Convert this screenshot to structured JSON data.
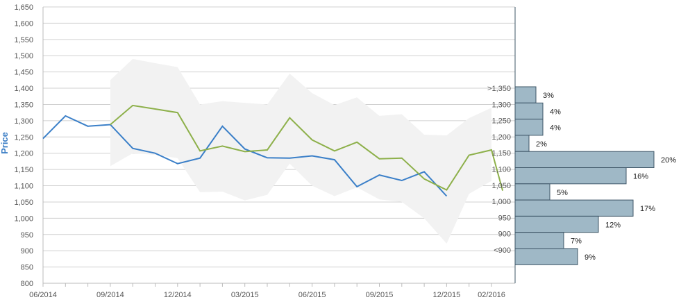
{
  "chart_data": {
    "type": "line",
    "ylabel": "Price",
    "ylim": [
      800,
      1650
    ],
    "y_ticks": [
      "800",
      "850",
      "900",
      "950",
      "1,000",
      "1,050",
      "1,100",
      "1,150",
      "1,200",
      "1,250",
      "1,300",
      "1,350",
      "1,400",
      "1,450",
      "1,500",
      "1,550",
      "1,600",
      "1,650"
    ],
    "x_labels": [
      "06/2014",
      "09/2014",
      "12/2014",
      "03/2015",
      "06/2015",
      "09/2015",
      "12/2015",
      "02/2016"
    ],
    "grid": true,
    "colors": {
      "actual": "#3a7fc8",
      "forecast": "#8db04a",
      "band": "#f2f2f2",
      "bar_fill": "#9fb8c6",
      "bar_stroke": "#3d5566"
    },
    "series": [
      {
        "key": "actual",
        "x": [
          "06/2014",
          "07/2014",
          "08/2014",
          "09/2014",
          "10/2014",
          "11/2014",
          "12/2014",
          "01/2015",
          "02/2015",
          "03/2015",
          "04/2015",
          "05/2015",
          "06/2015",
          "07/2015",
          "08/2015",
          "09/2015",
          "10/2015",
          "11/2015",
          "12/2015"
        ],
        "values": [
          1245,
          1315,
          1283,
          1288,
          1215,
          1200,
          1168,
          1185,
          1283,
          1213,
          1186,
          1185,
          1192,
          1180,
          1097,
          1133,
          1116,
          1143,
          1068
        ]
      },
      {
        "key": "forecast",
        "x": [
          "09/2014",
          "10/2014",
          "11/2014",
          "12/2014",
          "01/2015",
          "02/2015",
          "03/2015",
          "04/2015",
          "05/2015",
          "06/2015",
          "07/2015",
          "08/2015",
          "09/2015",
          "10/2015",
          "11/2015",
          "12/2015",
          "01/2016",
          "02/2016",
          "02/2016+"
        ],
        "values": [
          1288,
          1347,
          1336,
          1325,
          1207,
          1222,
          1205,
          1210,
          1309,
          1241,
          1207,
          1234,
          1183,
          1185,
          1121,
          1087,
          1194,
          1210,
          1085
        ]
      }
    ],
    "band": {
      "x": [
        "09/2014",
        "10/2014",
        "11/2014",
        "12/2014",
        "01/2015",
        "02/2015",
        "03/2015",
        "04/2015",
        "05/2015",
        "06/2015",
        "07/2015",
        "08/2015",
        "09/2015",
        "10/2015",
        "11/2015",
        "12/2015",
        "01/2016",
        "02/2016"
      ],
      "upper": [
        1425,
        1490,
        1477,
        1465,
        1350,
        1360,
        1355,
        1350,
        1445,
        1385,
        1348,
        1372,
        1315,
        1320,
        1257,
        1255,
        1308,
        1340
      ],
      "lower": [
        1160,
        1200,
        1195,
        1185,
        1080,
        1082,
        1055,
        1072,
        1168,
        1100,
        1068,
        1095,
        1058,
        1050,
        1000,
        922,
        1075,
        1115
      ]
    },
    "distribution": {
      "labels": [
        "<900",
        "900",
        "950",
        "1,000",
        "1,050",
        "1,100",
        "1,150",
        "1,200",
        "1,250",
        "1,300",
        ">1,350"
      ],
      "values": [
        9,
        7,
        12,
        17,
        5,
        16,
        20,
        2,
        4,
        4,
        3
      ],
      "pct_labels": [
        "9%",
        "7%",
        "12%",
        "17%",
        "5%",
        "16%",
        "20%",
        "2%",
        "4%",
        "4%",
        "3%"
      ]
    }
  }
}
